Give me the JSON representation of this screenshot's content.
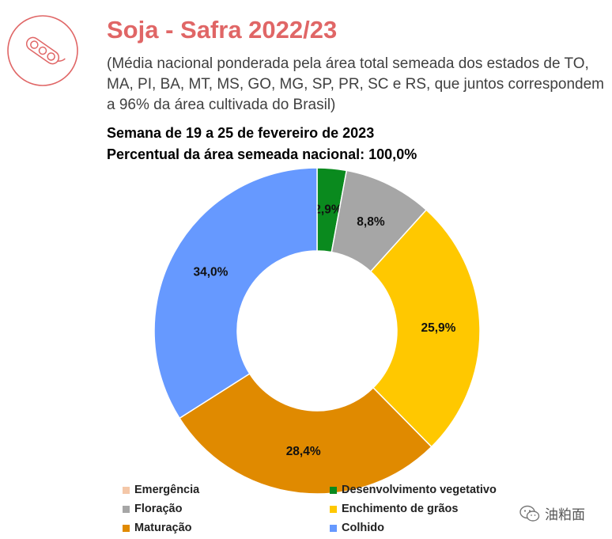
{
  "header": {
    "title": "Soja - Safra 2022/23",
    "subtitle": "(Média nacional ponderada pela área total semeada dos estados de TO, MA, PI, BA, MT, MS, GO, MG, SP, PR, SC e RS, que juntos correspondem a 96% da área cultivada do Brasil)",
    "week": "Semana de 19 a 25 de fevereiro de 2023",
    "area_share": "Percentual da área semeada nacional: 100,0%"
  },
  "logo": {
    "icon": "soybean-pod-icon",
    "color": "#e06666"
  },
  "chart_data": {
    "type": "pie",
    "variant": "donut",
    "legend_position": "bottom",
    "slices": [
      {
        "name": "Emergência",
        "value": 0.0,
        "label": "",
        "color": "#f4c7a8"
      },
      {
        "name": "Desenvolvimento vegetativo",
        "value": 2.9,
        "label": "2,9%",
        "color": "#0a8a1e"
      },
      {
        "name": "Floração",
        "value": 8.8,
        "label": "8,8%",
        "color": "#a6a6a6"
      },
      {
        "name": "Enchimento de grãos",
        "value": 25.9,
        "label": "25,9%",
        "color": "#ffc800"
      },
      {
        "name": "Maturação",
        "value": 28.4,
        "label": "28,4%",
        "color": "#e08a00"
      },
      {
        "name": "Colhido",
        "value": 34.0,
        "label": "34,0%",
        "color": "#6699ff"
      }
    ]
  },
  "legend": {
    "items": [
      {
        "label": "Emergência",
        "color": "#f4c7a8"
      },
      {
        "label": "Desenvolvimento vegetativo",
        "color": "#0a8a1e"
      },
      {
        "label": "Floração",
        "color": "#a6a6a6"
      },
      {
        "label": "Enchimento de grãos",
        "color": "#ffc800"
      },
      {
        "label": "Maturação",
        "color": "#e08a00"
      },
      {
        "label": "Colhido",
        "color": "#6699ff"
      }
    ]
  },
  "watermark": {
    "text": "油粕面",
    "icon": "wechat-icon"
  }
}
